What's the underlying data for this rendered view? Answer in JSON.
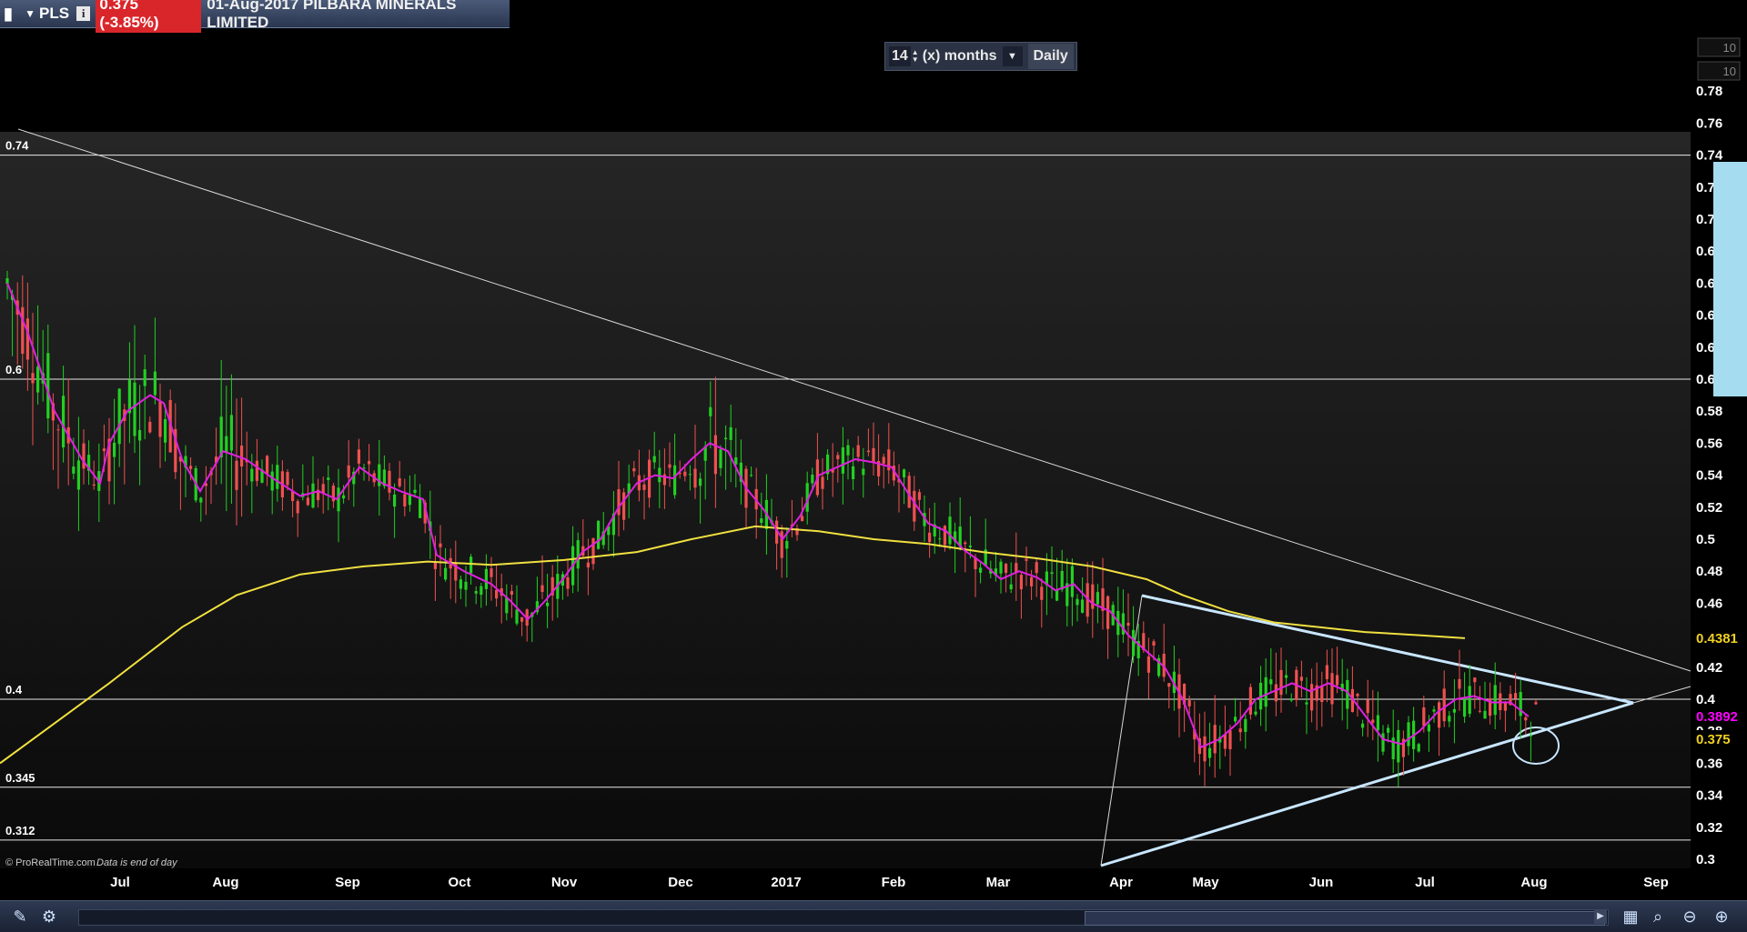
{
  "header": {
    "symbol": "PLS",
    "price_change": "0.375 (-3.85%)",
    "title": "01-Aug-2017 PILBARA MINERALS LIMITED"
  },
  "period_selector": {
    "value": "14",
    "unit": "(x) months",
    "interval": "Daily"
  },
  "footer_note": {
    "copyright": "© ProRealTime.com",
    "eod": "Data is end of day"
  },
  "chart_data": {
    "type": "candlestick",
    "x_labels": [
      "Jul",
      "Aug",
      "Sep",
      "Oct",
      "Nov",
      "Dec",
      "2017",
      "Feb",
      "Mar",
      "Apr",
      "May",
      "Jun",
      "Jul",
      "Aug",
      "Sep"
    ],
    "y_ticks": [
      "0.3",
      "0.32",
      "0.34",
      "0.36",
      "0.38",
      "0.4",
      "0.42",
      "0.44",
      "0.46",
      "0.48",
      "0.5",
      "0.52",
      "0.54",
      "0.56",
      "0.58",
      "0.6",
      "0.62",
      "0.64",
      "0.66",
      "0.68",
      "0.7",
      "0.72",
      "0.74",
      "0.76",
      "0.78"
    ],
    "ylim": [
      0.3,
      0.78
    ],
    "top_boxes": [
      "10",
      "10"
    ],
    "levels": [
      {
        "label": "0.74",
        "value": 0.74
      },
      {
        "label": "0.6",
        "value": 0.6
      },
      {
        "label": "0.4",
        "value": 0.4
      },
      {
        "label": "0.345",
        "value": 0.345
      },
      {
        "label": "0.312",
        "value": 0.312
      }
    ],
    "price_tags": [
      {
        "label": "0.4381",
        "value": 0.4381,
        "color": "#f0d020"
      },
      {
        "label": "0.3892",
        "value": 0.3892,
        "color": "#ff00ff"
      },
      {
        "label": "0.375",
        "value": 0.375,
        "color": "#f0d020"
      }
    ],
    "colors": {
      "up": "#22d022",
      "down": "#f05050",
      "ma_short": "#e020e0",
      "ma_long": "#f0e040",
      "trendline": "#c8e6ff",
      "levels": "#e8e8e8"
    },
    "moving_average_200": [
      [
        0,
        0.36
      ],
      [
        60,
        0.385
      ],
      [
        120,
        0.41
      ],
      [
        200,
        0.445
      ],
      [
        260,
        0.465
      ],
      [
        330,
        0.478
      ],
      [
        400,
        0.483
      ],
      [
        470,
        0.486
      ],
      [
        540,
        0.484
      ],
      [
        620,
        0.487
      ],
      [
        700,
        0.492
      ],
      [
        760,
        0.5
      ],
      [
        830,
        0.508
      ],
      [
        900,
        0.505
      ],
      [
        960,
        0.5
      ],
      [
        1020,
        0.497
      ],
      [
        1080,
        0.492
      ],
      [
        1140,
        0.488
      ],
      [
        1200,
        0.483
      ],
      [
        1260,
        0.475
      ],
      [
        1300,
        0.465
      ],
      [
        1350,
        0.455
      ],
      [
        1400,
        0.448
      ],
      [
        1450,
        0.445
      ],
      [
        1500,
        0.442
      ],
      [
        1560,
        0.44
      ],
      [
        1610,
        0.4381
      ]
    ],
    "moving_average_short": [
      [
        8,
        0.66
      ],
      [
        30,
        0.63
      ],
      [
        60,
        0.58
      ],
      [
        90,
        0.55
      ],
      [
        110,
        0.535
      ],
      [
        120,
        0.56
      ],
      [
        140,
        0.58
      ],
      [
        165,
        0.59
      ],
      [
        180,
        0.585
      ],
      [
        200,
        0.55
      ],
      [
        220,
        0.53
      ],
      [
        245,
        0.555
      ],
      [
        270,
        0.55
      ],
      [
        300,
        0.538
      ],
      [
        330,
        0.527
      ],
      [
        350,
        0.53
      ],
      [
        370,
        0.525
      ],
      [
        395,
        0.545
      ],
      [
        420,
        0.535
      ],
      [
        440,
        0.53
      ],
      [
        465,
        0.525
      ],
      [
        480,
        0.49
      ],
      [
        510,
        0.48
      ],
      [
        540,
        0.472
      ],
      [
        560,
        0.462
      ],
      [
        580,
        0.45
      ],
      [
        600,
        0.462
      ],
      [
        620,
        0.476
      ],
      [
        640,
        0.492
      ],
      [
        660,
        0.5
      ],
      [
        680,
        0.52
      ],
      [
        700,
        0.535
      ],
      [
        720,
        0.54
      ],
      [
        740,
        0.538
      ],
      [
        760,
        0.55
      ],
      [
        780,
        0.56
      ],
      [
        800,
        0.555
      ],
      [
        820,
        0.532
      ],
      [
        840,
        0.518
      ],
      [
        860,
        0.5
      ],
      [
        880,
        0.515
      ],
      [
        900,
        0.54
      ],
      [
        920,
        0.545
      ],
      [
        940,
        0.55
      ],
      [
        960,
        0.548
      ],
      [
        980,
        0.545
      ],
      [
        1000,
        0.527
      ],
      [
        1020,
        0.51
      ],
      [
        1040,
        0.505
      ],
      [
        1060,
        0.493
      ],
      [
        1080,
        0.485
      ],
      [
        1100,
        0.475
      ],
      [
        1120,
        0.48
      ],
      [
        1140,
        0.476
      ],
      [
        1160,
        0.468
      ],
      [
        1180,
        0.472
      ],
      [
        1200,
        0.46
      ],
      [
        1220,
        0.455
      ],
      [
        1240,
        0.44
      ],
      [
        1260,
        0.43
      ],
      [
        1280,
        0.42
      ],
      [
        1300,
        0.4
      ],
      [
        1320,
        0.37
      ],
      [
        1340,
        0.375
      ],
      [
        1360,
        0.385
      ],
      [
        1380,
        0.4
      ],
      [
        1400,
        0.405
      ],
      [
        1420,
        0.41
      ],
      [
        1440,
        0.405
      ],
      [
        1460,
        0.41
      ],
      [
        1480,
        0.405
      ],
      [
        1500,
        0.39
      ],
      [
        1520,
        0.375
      ],
      [
        1540,
        0.372
      ],
      [
        1560,
        0.38
      ],
      [
        1580,
        0.392
      ],
      [
        1600,
        0.4
      ],
      [
        1620,
        0.402
      ],
      [
        1640,
        0.398
      ],
      [
        1660,
        0.398
      ],
      [
        1680,
        0.3892
      ]
    ]
  }
}
